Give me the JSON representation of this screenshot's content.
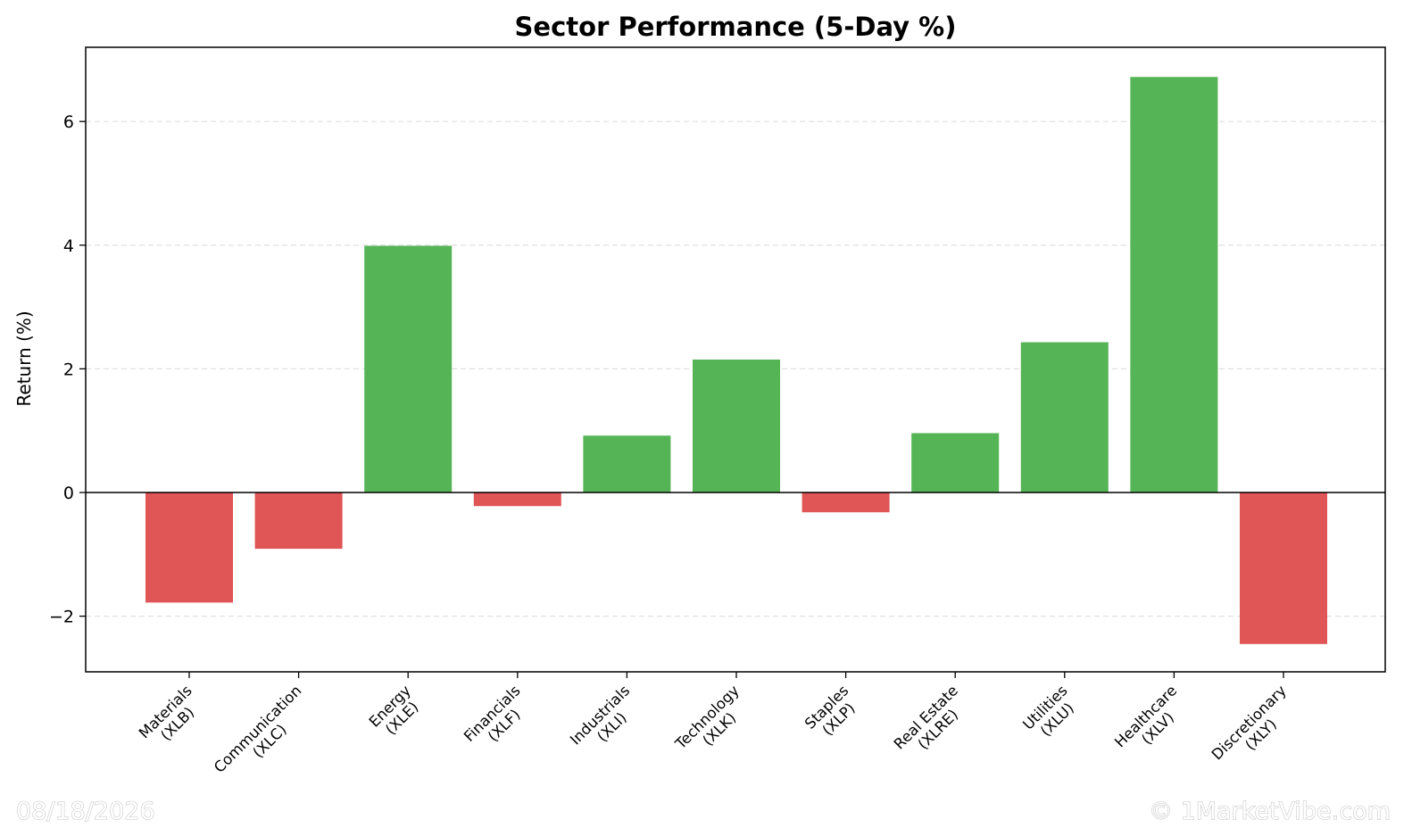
{
  "chart_data": {
    "type": "bar",
    "title": "Sector Performance (5-Day %)",
    "xlabel": "",
    "ylabel": "Return (%)",
    "ylim": [
      -2.9,
      7.2
    ],
    "yticks": [
      -2,
      0,
      2,
      4,
      6
    ],
    "ytick_labels": [
      "−2",
      "0",
      "2",
      "4",
      "6"
    ],
    "grid": "y-dashed",
    "categories": [
      [
        "Materials",
        "(XLB)"
      ],
      [
        "Communication",
        "(XLC)"
      ],
      [
        "Energy",
        "(XLE)"
      ],
      [
        "Financials",
        "(XLF)"
      ],
      [
        "Industrials",
        "(XLI)"
      ],
      [
        "Technology",
        "(XLK)"
      ],
      [
        "Staples",
        "(XLP)"
      ],
      [
        "Real Estate",
        "(XLRE)"
      ],
      [
        "Utilities",
        "(XLU)"
      ],
      [
        "Healthcare",
        "(XLV)"
      ],
      [
        "Discretionary",
        "(XLY)"
      ]
    ],
    "values": [
      -1.78,
      -0.91,
      3.99,
      -0.22,
      0.92,
      2.15,
      -0.32,
      0.96,
      2.43,
      6.72,
      -2.45
    ],
    "colors": {
      "positive": "#55b455",
      "negative": "#e05556",
      "zero_line": "#000000",
      "grid": "#e0e0e0"
    }
  },
  "watermark": {
    "date": "08/18/2026",
    "copyright": "© 1MarketVibe.com"
  }
}
